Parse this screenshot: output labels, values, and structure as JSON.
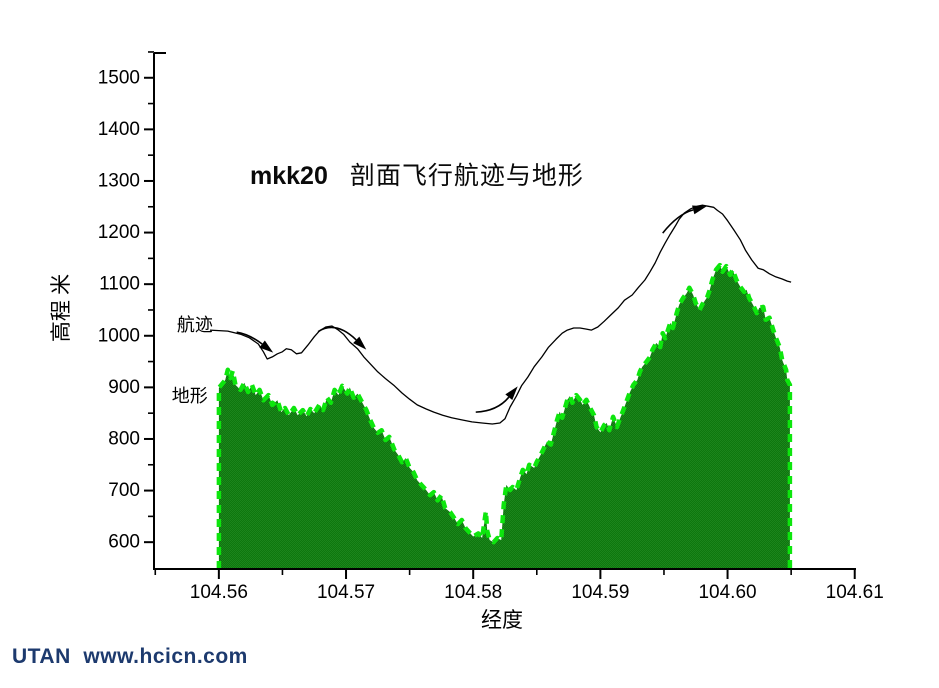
{
  "watermark": {
    "text": "UTAN  www.hcicn.com",
    "color": "#1d3a6e"
  },
  "chart_data": {
    "type": "area+line",
    "title_prefix": "mkk20",
    "title_text": "剖面飞行航迹与地形",
    "xlabel": "经度",
    "ylabel": "高程 米",
    "xlim": [
      104.5549,
      104.6101
    ],
    "ylim": [
      548,
      1548
    ],
    "grid": false,
    "x_ticks": {
      "major": [
        104.56,
        104.57,
        104.58,
        104.59,
        104.6,
        104.61
      ],
      "labels": [
        "104.56",
        "104.57",
        "104.58",
        "104.59",
        "104.60",
        "104.61"
      ],
      "minor": [
        104.555,
        104.565,
        104.575,
        104.585,
        104.595,
        104.605
      ]
    },
    "y_ticks": {
      "major": [
        600,
        700,
        800,
        900,
        1000,
        1100,
        1200,
        1300,
        1400,
        1500
      ],
      "labels": [
        "600",
        "700",
        "800",
        "900",
        "1000",
        "1100",
        "1200",
        "1300",
        "1400",
        "1500"
      ],
      "minor": [
        650,
        750,
        850,
        950,
        1050,
        1150,
        1250,
        1350,
        1450,
        1550
      ]
    },
    "colors": {
      "terrain_fill": "#147c14",
      "terrain_fill_dark": "#0e770e",
      "terrain_fill_light": "#1c851c",
      "terrain_edge": "#0de60d",
      "track": "#000000",
      "axis": "#000000"
    },
    "series": [
      {
        "name": "地形",
        "type": "area",
        "points": [
          [
            104.56,
            899
          ],
          [
            104.5605,
            914
          ],
          [
            104.5607,
            934
          ],
          [
            104.5609,
            918
          ],
          [
            104.5611,
            932
          ],
          [
            104.5613,
            905
          ],
          [
            104.5617,
            895
          ],
          [
            104.562,
            909
          ],
          [
            104.5623,
            891
          ],
          [
            104.5626,
            905
          ],
          [
            104.5629,
            885
          ],
          [
            104.5632,
            895
          ],
          [
            104.5635,
            875
          ],
          [
            104.5639,
            885
          ],
          [
            104.5642,
            866
          ],
          [
            104.5646,
            875
          ],
          [
            104.5649,
            852
          ],
          [
            104.5652,
            860
          ],
          [
            104.5655,
            846
          ],
          [
            104.5659,
            860
          ],
          [
            104.5662,
            846
          ],
          [
            104.5666,
            856
          ],
          [
            104.5669,
            844
          ],
          [
            104.5672,
            858
          ],
          [
            104.5675,
            850
          ],
          [
            104.5679,
            866
          ],
          [
            104.5682,
            856
          ],
          [
            104.5685,
            880
          ],
          [
            104.5688,
            870
          ],
          [
            104.5691,
            895
          ],
          [
            104.5694,
            885
          ],
          [
            104.5697,
            903
          ],
          [
            104.5701,
            888
          ],
          [
            104.5703,
            900
          ],
          [
            104.5706,
            880
          ],
          [
            104.5709,
            888
          ],
          [
            104.5712,
            874
          ],
          [
            104.5716,
            856
          ],
          [
            104.5719,
            837
          ],
          [
            104.5722,
            821
          ],
          [
            104.5725,
            812
          ],
          [
            104.5728,
            817
          ],
          [
            104.5731,
            798
          ],
          [
            104.5734,
            804
          ],
          [
            104.5738,
            779
          ],
          [
            104.5741,
            769
          ],
          [
            104.5744,
            755
          ],
          [
            104.5747,
            763
          ],
          [
            104.575,
            744
          ],
          [
            104.5753,
            736
          ],
          [
            104.5756,
            720
          ],
          [
            104.576,
            709
          ],
          [
            104.5763,
            701
          ],
          [
            104.5766,
            691
          ],
          [
            104.5769,
            697
          ],
          [
            104.5772,
            681
          ],
          [
            104.5775,
            691
          ],
          [
            104.5778,
            666
          ],
          [
            104.5782,
            658
          ],
          [
            104.5785,
            647
          ],
          [
            104.5788,
            635
          ],
          [
            104.5791,
            643
          ],
          [
            104.5794,
            627
          ],
          [
            104.5797,
            619
          ],
          [
            104.58,
            611
          ],
          [
            104.5804,
            617
          ],
          [
            104.5807,
            608
          ],
          [
            104.581,
            660
          ],
          [
            104.5811,
            622
          ],
          [
            104.5813,
            604
          ],
          [
            104.5816,
            600
          ],
          [
            104.5819,
            608
          ],
          [
            104.5822,
            604
          ],
          [
            104.5824,
            672
          ],
          [
            104.5826,
            711
          ],
          [
            104.5829,
            701
          ],
          [
            104.5831,
            707
          ],
          [
            104.5834,
            701
          ],
          [
            104.5837,
            726
          ],
          [
            104.5839,
            740
          ],
          [
            104.5842,
            732
          ],
          [
            104.5844,
            750
          ],
          [
            104.5848,
            744
          ],
          [
            104.585,
            756
          ],
          [
            104.5853,
            769
          ],
          [
            104.5855,
            779
          ],
          [
            104.5858,
            795
          ],
          [
            104.5861,
            789
          ],
          [
            104.5863,
            808
          ],
          [
            104.5866,
            837
          ],
          [
            104.5868,
            853
          ],
          [
            104.587,
            841
          ],
          [
            104.5874,
            876
          ],
          [
            104.5876,
            883
          ],
          [
            104.5878,
            870
          ],
          [
            104.5881,
            885
          ],
          [
            104.5884,
            876
          ],
          [
            104.5886,
            866
          ],
          [
            104.5889,
            876
          ],
          [
            104.5892,
            860
          ],
          [
            104.5895,
            846
          ],
          [
            104.5897,
            823
          ],
          [
            104.59,
            813
          ],
          [
            104.5903,
            827
          ],
          [
            104.5905,
            831
          ],
          [
            104.5907,
            817
          ],
          [
            104.591,
            843
          ],
          [
            104.5913,
            823
          ],
          [
            104.5915,
            837
          ],
          [
            104.5918,
            856
          ],
          [
            104.5921,
            876
          ],
          [
            104.5923,
            889
          ],
          [
            104.5926,
            905
          ],
          [
            104.5929,
            914
          ],
          [
            104.5931,
            930
          ],
          [
            104.5933,
            940
          ],
          [
            104.5936,
            949
          ],
          [
            104.5939,
            959
          ],
          [
            104.5941,
            973
          ],
          [
            104.5944,
            986
          ],
          [
            104.5947,
            978
          ],
          [
            104.5949,
            1005
          ],
          [
            104.5951,
            995
          ],
          [
            104.5955,
            1025
          ],
          [
            104.5957,
            1015
          ],
          [
            104.596,
            1044
          ],
          [
            104.5962,
            1060
          ],
          [
            104.5965,
            1073
          ],
          [
            104.5968,
            1083
          ],
          [
            104.597,
            1093
          ],
          [
            104.5973,
            1079
          ],
          [
            104.5975,
            1063
          ],
          [
            104.5978,
            1050
          ],
          [
            104.598,
            1060
          ],
          [
            104.5984,
            1075
          ],
          [
            104.5986,
            1089
          ],
          [
            104.5988,
            1108
          ],
          [
            104.5991,
            1128
          ],
          [
            104.5994,
            1137
          ],
          [
            104.5996,
            1124
          ],
          [
            104.5999,
            1135
          ],
          [
            104.6002,
            1118
          ],
          [
            104.6004,
            1128
          ],
          [
            104.6007,
            1108
          ],
          [
            104.601,
            1095
          ],
          [
            104.6013,
            1085
          ],
          [
            104.6015,
            1089
          ],
          [
            104.6017,
            1073
          ],
          [
            104.602,
            1060
          ],
          [
            104.6023,
            1044
          ],
          [
            104.6025,
            1054
          ],
          [
            104.6028,
            1056
          ],
          [
            104.603,
            1031
          ],
          [
            104.6033,
            1035
          ],
          [
            104.6036,
            1011
          ],
          [
            104.6038,
            996
          ],
          [
            104.6041,
            978
          ],
          [
            104.6043,
            953
          ],
          [
            104.6046,
            934
          ],
          [
            104.6047,
            914
          ],
          [
            104.6049,
            905
          ]
        ]
      },
      {
        "name": "航迹",
        "type": "line",
        "points": [
          [
            104.5593,
            1011
          ],
          [
            104.5607,
            1009
          ],
          [
            104.5617,
            1003
          ],
          [
            104.5624,
            996
          ],
          [
            104.5631,
            984
          ],
          [
            104.5635,
            969
          ],
          [
            104.5638,
            955
          ],
          [
            104.5642,
            959
          ],
          [
            104.5646,
            965
          ],
          [
            104.565,
            969
          ],
          [
            104.5653,
            975
          ],
          [
            104.5657,
            973
          ],
          [
            104.5661,
            965
          ],
          [
            104.5665,
            967
          ],
          [
            104.567,
            982
          ],
          [
            104.5675,
            998
          ],
          [
            104.5679,
            1009
          ],
          [
            104.5684,
            1017
          ],
          [
            104.5689,
            1019
          ],
          [
            104.5694,
            1011
          ],
          [
            104.5698,
            1003
          ],
          [
            104.5703,
            988
          ],
          [
            104.5709,
            975
          ],
          [
            104.5714,
            959
          ],
          [
            104.572,
            943
          ],
          [
            104.5725,
            930
          ],
          [
            104.5731,
            917
          ],
          [
            104.5738,
            903
          ],
          [
            104.5744,
            889
          ],
          [
            104.575,
            877
          ],
          [
            104.5756,
            866
          ],
          [
            104.5763,
            858
          ],
          [
            104.5769,
            852
          ],
          [
            104.5776,
            846
          ],
          [
            104.5783,
            841
          ],
          [
            104.5791,
            837
          ],
          [
            104.5799,
            833
          ],
          [
            104.5807,
            831
          ],
          [
            104.5815,
            829
          ],
          [
            104.5821,
            831
          ],
          [
            104.5825,
            839
          ],
          [
            104.5829,
            862
          ],
          [
            104.5834,
            883
          ],
          [
            104.5838,
            903
          ],
          [
            104.5843,
            920
          ],
          [
            104.5848,
            940
          ],
          [
            104.5854,
            959
          ],
          [
            104.5859,
            977
          ],
          [
            104.5865,
            993
          ],
          [
            104.587,
            1005
          ],
          [
            104.5874,
            1011
          ],
          [
            104.5879,
            1015
          ],
          [
            104.5884,
            1015
          ],
          [
            104.5889,
            1013
          ],
          [
            104.5893,
            1011
          ],
          [
            104.5898,
            1017
          ],
          [
            104.5903,
            1028
          ],
          [
            104.5908,
            1040
          ],
          [
            104.5914,
            1054
          ],
          [
            104.5919,
            1069
          ],
          [
            104.5925,
            1079
          ],
          [
            104.593,
            1094
          ],
          [
            104.5935,
            1108
          ],
          [
            104.5939,
            1124
          ],
          [
            104.5943,
            1141
          ],
          [
            104.5947,
            1162
          ],
          [
            104.5951,
            1180
          ],
          [
            104.5955,
            1197
          ],
          [
            104.5959,
            1213
          ],
          [
            104.5962,
            1226
          ],
          [
            104.5966,
            1238
          ],
          [
            104.5971,
            1246
          ],
          [
            104.5976,
            1251
          ],
          [
            104.598,
            1253
          ],
          [
            104.5985,
            1251
          ],
          [
            104.5989,
            1249
          ],
          [
            104.5992,
            1243
          ],
          [
            104.5996,
            1236
          ],
          [
            104.6,
            1223
          ],
          [
            104.6005,
            1205
          ],
          [
            104.601,
            1186
          ],
          [
            104.6014,
            1166
          ],
          [
            104.6019,
            1147
          ],
          [
            104.6024,
            1131
          ],
          [
            104.6028,
            1128
          ],
          [
            104.6033,
            1120
          ],
          [
            104.6038,
            1114
          ],
          [
            104.6043,
            1110
          ],
          [
            104.6047,
            1106
          ],
          [
            104.605,
            1104
          ]
        ]
      }
    ],
    "annotations": {
      "series_labels": [
        {
          "text": "航迹",
          "lon": 104.5567,
          "elev": 1021
        },
        {
          "text": "地形",
          "lon": 104.5563,
          "elev": 883
        }
      ],
      "arrows": [
        {
          "points": [
            [
              104.5614,
              1007
            ],
            [
              104.5624,
              1003
            ],
            [
              104.5634,
              984
            ]
          ]
        },
        {
          "points": [
            [
              104.5678,
              1008
            ],
            [
              104.5692,
              1030
            ],
            [
              104.5708,
              992
            ]
          ]
        },
        {
          "points": [
            [
              104.5802,
              852
            ],
            [
              104.5819,
              854
            ],
            [
              104.5828,
              881
            ]
          ]
        },
        {
          "points": [
            [
              104.5949,
              1199
            ],
            [
              104.5961,
              1236
            ],
            [
              104.5973,
              1244
            ]
          ]
        }
      ]
    }
  }
}
